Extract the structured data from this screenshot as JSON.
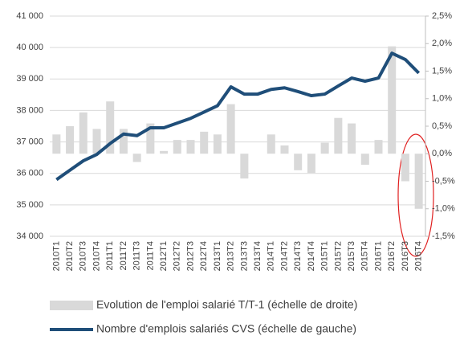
{
  "chart_data": {
    "type": "bar-line",
    "categories": [
      "2010T1",
      "2010T2",
      "2010T3",
      "2010T4",
      "2011T1",
      "2011T2",
      "2011T3",
      "2011T4",
      "2012T1",
      "2012T2",
      "2012T3",
      "2012T4",
      "2013T1",
      "2013T2",
      "2013T3",
      "2013T4",
      "2014T1",
      "2014T2",
      "2014T3",
      "2014T4",
      "2015T1",
      "2015T2",
      "2015T3",
      "2015T4",
      "2016T1",
      "2016T2",
      "2016T3",
      "2016T4"
    ],
    "series": [
      {
        "name": "Evolution de l'emploi salarié T/T-1 (échelle de droite)",
        "type": "bar",
        "axis": "y2",
        "color": "#d9d9d9",
        "values": [
          0.35,
          0.5,
          0.75,
          0.45,
          0.95,
          0.45,
          -0.15,
          0.55,
          0.05,
          0.25,
          0.25,
          0.4,
          0.35,
          0.9,
          -0.45,
          0.0,
          0.35,
          0.15,
          -0.3,
          -0.35,
          0.2,
          0.65,
          0.55,
          -0.2,
          0.25,
          1.95,
          -0.5,
          -1.0
        ]
      },
      {
        "name": "Nombre d'emplois salariés CVS (échelle de gauche)",
        "type": "line",
        "axis": "y",
        "color": "#1f4e79",
        "values": [
          35800,
          36100,
          36400,
          36600,
          36950,
          37250,
          37200,
          37450,
          37450,
          37600,
          37750,
          37950,
          38150,
          38750,
          38520,
          38520,
          38670,
          38720,
          38600,
          38470,
          38520,
          38780,
          39030,
          38930,
          39030,
          39820,
          39620,
          39190
        ]
      }
    ],
    "ylim": [
      34000,
      41000
    ],
    "yticks": [
      {
        "value": 34000,
        "label": "34 000"
      },
      {
        "value": 35000,
        "label": "35 000"
      },
      {
        "value": 36000,
        "label": "36 000"
      },
      {
        "value": 37000,
        "label": "37 000"
      },
      {
        "value": 38000,
        "label": "38 000"
      },
      {
        "value": 39000,
        "label": "39 000"
      },
      {
        "value": 40000,
        "label": "40 000"
      },
      {
        "value": 41000,
        "label": "41 000"
      }
    ],
    "y2lim": [
      -1.5,
      2.5
    ],
    "y2ticks": [
      {
        "value": -1.5,
        "label": "-1,5%"
      },
      {
        "value": -1.0,
        "label": "-1,0%"
      },
      {
        "value": -0.5,
        "label": "-0,5%"
      },
      {
        "value": 0,
        "label": "0,0%"
      },
      {
        "value": 0.5,
        "label": "0,5%"
      },
      {
        "value": 1.0,
        "label": "1,0%"
      },
      {
        "value": 1.5,
        "label": "1,5%"
      },
      {
        "value": 2.0,
        "label": "2,0%"
      },
      {
        "value": 2.5,
        "label": "2,5%"
      }
    ],
    "grid": true,
    "legend": "bottom"
  }
}
